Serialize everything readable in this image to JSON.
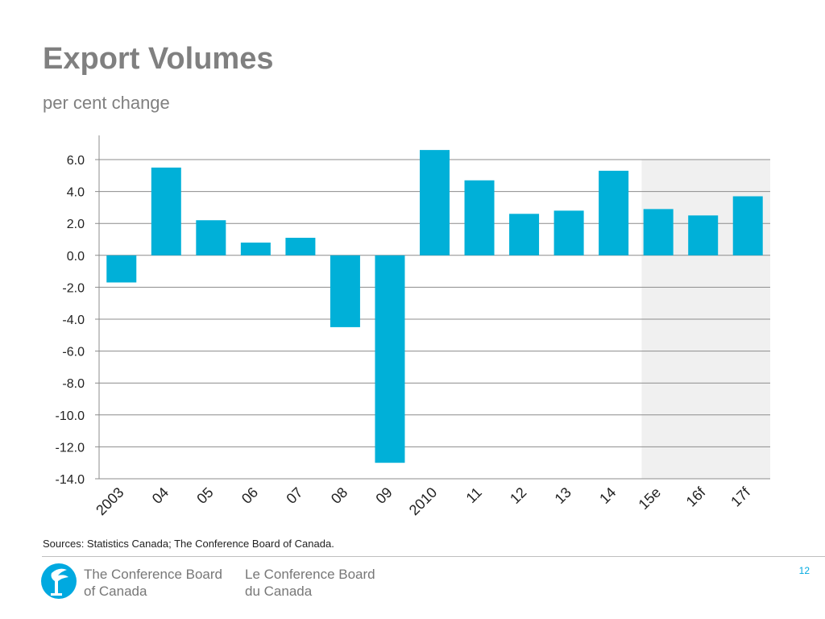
{
  "slide": {
    "title": "Export Volumes",
    "subtitle": "per cent change",
    "sources": "Sources: Statistics Canada; The Conference Board of Canada.",
    "page_number": "12"
  },
  "footer": {
    "org_en_line1": "The Conference Board",
    "org_en_line2": "of Canada",
    "org_fr_line1": "Le Conference Board",
    "org_fr_line2": "du Canada",
    "logo_icon": "conference-board-torch-icon"
  },
  "colors": {
    "bar": "#00b0d8",
    "forecast_shade": "#f0f0f0",
    "grid": "#8c8c8c",
    "accent": "#00a9e0"
  },
  "chart_data": {
    "type": "bar",
    "title": "Export Volumes",
    "subtitle": "per cent change",
    "xlabel": "",
    "ylabel": "",
    "ylim": [
      -14,
      7
    ],
    "yticks": [
      6,
      4,
      2,
      0,
      -2,
      -4,
      -6,
      -8,
      -10,
      -12,
      -14
    ],
    "ytick_labels": [
      "6.0",
      "4.0",
      "2.0",
      "0.0",
      "-2.0",
      "-4.0",
      "-6.0",
      "-8.0",
      "-10.0",
      "-12.0",
      "-14.0"
    ],
    "grid": true,
    "categories": [
      "2003",
      "04",
      "05",
      "06",
      "07",
      "08",
      "09",
      "2010",
      "11",
      "12",
      "13",
      "14",
      "15e",
      "16f",
      "17f"
    ],
    "values": [
      -1.7,
      5.5,
      2.2,
      0.8,
      1.1,
      -4.5,
      -13.0,
      6.6,
      4.7,
      2.6,
      2.8,
      5.3,
      2.9,
      2.5,
      3.7
    ],
    "shaded_categories": [
      "15e",
      "16f",
      "17f"
    ]
  }
}
